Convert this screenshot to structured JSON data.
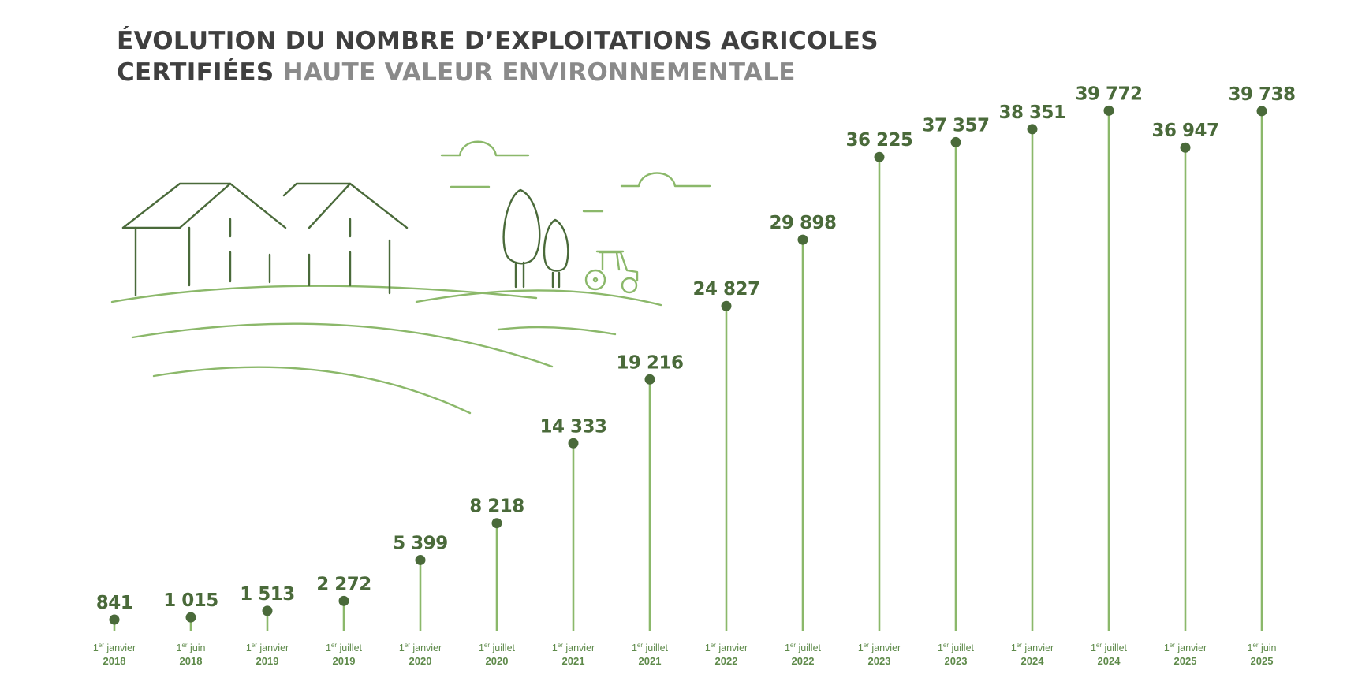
{
  "title": {
    "line1": "ÉVOLUTION DU NOMBRE D’EXPLOITATIONS AGRICOLES",
    "line2_dark": "CERTIFIÉES",
    "line2_light": "HAUTE VALEUR ENVIRONNEMENTALE"
  },
  "colors": {
    "stem": "#8bb86a",
    "dot": "#4a6a3a",
    "value_text": "#4a6a3a",
    "title_dark": "#3f3f3f",
    "title_light": "#8a8a8a",
    "illustration_dark": "#4a6a3a",
    "illustration_light": "#8bb86a"
  },
  "chart_data": {
    "type": "lollipop",
    "title": "ÉVOLUTION DU NOMBRE D’EXPLOITATIONS AGRICOLES CERTIFIÉES HAUTE VALEUR ENVIRONNEMENTALE",
    "xlabel": "",
    "ylabel": "",
    "ylim": [
      0,
      41000
    ],
    "grid": false,
    "categories": [
      {
        "sup": "er",
        "prefix": "1",
        "label": "janvier",
        "year": "2018"
      },
      {
        "sup": "er",
        "prefix": "1",
        "label": "juin",
        "year": "2018"
      },
      {
        "sup": "er",
        "prefix": "1",
        "label": "janvier",
        "year": "2019"
      },
      {
        "sup": "er",
        "prefix": "1",
        "label": "juillet",
        "year": "2019"
      },
      {
        "sup": "er",
        "prefix": "1",
        "label": "janvier",
        "year": "2020"
      },
      {
        "sup": "er",
        "prefix": "1",
        "label": "juillet",
        "year": "2020"
      },
      {
        "sup": "er",
        "prefix": "1",
        "label": "janvier",
        "year": "2021"
      },
      {
        "sup": "er",
        "prefix": "1",
        "label": "juillet",
        "year": "2021"
      },
      {
        "sup": "er",
        "prefix": "1",
        "label": "janvier",
        "year": "2022"
      },
      {
        "sup": "er",
        "prefix": "1",
        "label": "juillet",
        "year": "2022"
      },
      {
        "sup": "er",
        "prefix": "1",
        "label": "janvier",
        "year": "2023"
      },
      {
        "sup": "er",
        "prefix": "1",
        "label": "juillet",
        "year": "2023"
      },
      {
        "sup": "er",
        "prefix": "1",
        "label": "janvier",
        "year": "2024"
      },
      {
        "sup": "er",
        "prefix": "1",
        "label": "juillet",
        "year": "2024"
      },
      {
        "sup": "er",
        "prefix": "1",
        "label": "janvier",
        "year": "2025"
      },
      {
        "sup": "er",
        "prefix": "1",
        "label": "juin",
        "year": "2025"
      }
    ],
    "values": [
      841,
      1015,
      1513,
      2272,
      5399,
      8218,
      14333,
      19216,
      24827,
      29898,
      36225,
      37357,
      38351,
      39772,
      36947,
      39738
    ],
    "value_labels": [
      "841",
      "1 015",
      "1 513",
      "2 272",
      "5 399",
      "8 218",
      "14 333",
      "19 216",
      "24 827",
      "29 898",
      "36 225",
      "37 357",
      "38 351",
      "39 772",
      "36 947",
      "39 738"
    ]
  }
}
